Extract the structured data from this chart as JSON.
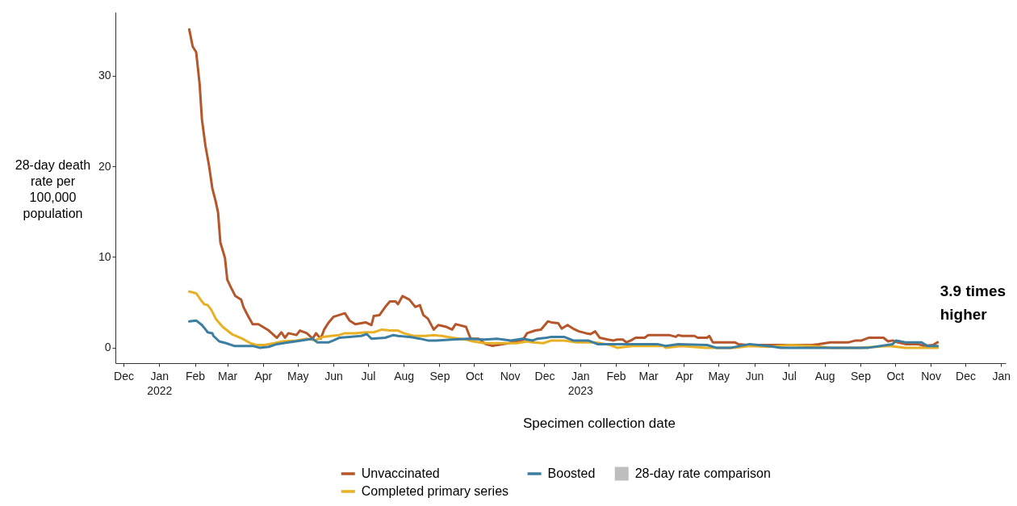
{
  "chart_data": {
    "type": "line",
    "xlabel": "Specimen collection date",
    "ylabel": "28-day death rate per 100,000 population",
    "annotations": [
      "3.9 times higher"
    ],
    "xlim": [
      "2021-11-24",
      "2024-01-05"
    ],
    "xticks": [
      {
        "value": "2021-12-01",
        "label": "Dec"
      },
      {
        "value": "2022-01-01",
        "label": "Jan\n2022"
      },
      {
        "value": "2022-02-01",
        "label": "Feb"
      },
      {
        "value": "2022-03-01",
        "label": "Mar"
      },
      {
        "value": "2022-04-01",
        "label": "Apr"
      },
      {
        "value": "2022-05-01",
        "label": "May"
      },
      {
        "value": "2022-06-01",
        "label": "Jun"
      },
      {
        "value": "2022-07-01",
        "label": "Jul"
      },
      {
        "value": "2022-08-01",
        "label": "Aug"
      },
      {
        "value": "2022-09-01",
        "label": "Sep"
      },
      {
        "value": "2022-10-01",
        "label": "Oct"
      },
      {
        "value": "2022-11-01",
        "label": "Nov"
      },
      {
        "value": "2022-12-01",
        "label": "Dec"
      },
      {
        "value": "2023-01-01",
        "label": "Jan\n2023"
      },
      {
        "value": "2023-02-01",
        "label": "Feb"
      },
      {
        "value": "2023-03-01",
        "label": "Mar"
      },
      {
        "value": "2023-04-01",
        "label": "Apr"
      },
      {
        "value": "2023-05-01",
        "label": "May"
      },
      {
        "value": "2023-06-01",
        "label": "Jun"
      },
      {
        "value": "2023-07-01",
        "label": "Jul"
      },
      {
        "value": "2023-08-01",
        "label": "Aug"
      },
      {
        "value": "2023-09-01",
        "label": "Sep"
      },
      {
        "value": "2023-10-01",
        "label": "Oct"
      },
      {
        "value": "2023-11-01",
        "label": "Nov"
      },
      {
        "value": "2023-12-01",
        "label": "Dec"
      },
      {
        "value": "2024-01-01",
        "label": "Jan"
      }
    ],
    "ylim": [
      -1.7,
      37
    ],
    "yticks": [
      0,
      10,
      20,
      30
    ],
    "grid": false,
    "legend": "bottom",
    "series": [
      {
        "name": "Unvaccinated",
        "color": "#b5562b",
        "x": [
          "2022-01-27",
          "2022-01-30",
          "2022-02-02",
          "2022-02-05",
          "2022-02-07",
          "2022-02-10",
          "2022-02-13",
          "2022-02-16",
          "2022-02-19",
          "2022-02-21",
          "2022-02-23",
          "2022-02-27",
          "2022-03-01",
          "2022-03-04",
          "2022-03-08",
          "2022-03-13",
          "2022-03-15",
          "2022-03-19",
          "2022-03-23",
          "2022-03-28",
          "2022-04-06",
          "2022-04-13",
          "2022-04-17",
          "2022-04-20",
          "2022-04-23",
          "2022-04-30",
          "2022-05-03",
          "2022-05-09",
          "2022-05-14",
          "2022-05-17",
          "2022-05-21",
          "2022-05-24",
          "2022-05-28",
          "2022-06-01",
          "2022-06-06",
          "2022-06-11",
          "2022-06-13",
          "2022-06-15",
          "2022-06-20",
          "2022-06-29",
          "2022-07-04",
          "2022-07-06",
          "2022-07-11",
          "2022-07-16",
          "2022-07-20",
          "2022-07-25",
          "2022-07-27",
          "2022-07-31",
          "2022-08-06",
          "2022-08-11",
          "2022-08-15",
          "2022-08-18",
          "2022-08-22",
          "2022-08-27",
          "2022-08-31",
          "2022-09-07",
          "2022-09-12",
          "2022-09-15",
          "2022-09-24",
          "2022-09-28",
          "2022-10-05",
          "2022-10-11",
          "2022-10-17",
          "2022-10-31",
          "2022-11-12",
          "2022-11-16",
          "2022-11-23",
          "2022-11-28",
          "2022-12-04",
          "2022-12-07",
          "2022-12-13",
          "2022-12-16",
          "2022-12-21",
          "2022-12-26",
          "2022-12-31",
          "2023-01-06",
          "2023-01-10",
          "2023-01-14",
          "2023-01-18",
          "2023-01-25",
          "2023-01-30",
          "2023-02-02",
          "2023-02-07",
          "2023-02-10",
          "2023-02-14",
          "2023-02-18",
          "2023-02-26",
          "2023-03-01",
          "2023-03-19",
          "2023-03-25",
          "2023-03-27",
          "2023-03-30",
          "2023-04-10",
          "2023-04-13",
          "2023-04-21",
          "2023-04-23",
          "2023-04-26",
          "2023-05-15",
          "2023-05-18",
          "2023-05-26",
          "2023-07-21",
          "2023-07-27",
          "2023-08-06",
          "2023-08-22",
          "2023-08-28",
          "2023-09-02",
          "2023-09-08",
          "2023-09-21",
          "2023-09-25",
          "2023-09-29",
          "2023-10-03",
          "2023-10-10",
          "2023-10-21",
          "2023-10-26",
          "2023-11-03",
          "2023-11-07"
        ],
        "values": [
          35.1,
          33.2,
          32.6,
          29.1,
          25.2,
          22.3,
          20.2,
          17.6,
          16.1,
          14.9,
          11.6,
          9.9,
          7.5,
          6.7,
          5.7,
          5.3,
          4.5,
          3.5,
          2.6,
          2.6,
          1.9,
          1.1,
          1.7,
          1.1,
          1.6,
          1.4,
          1.9,
          1.6,
          1.0,
          1.6,
          1.0,
          2.0,
          2.8,
          3.4,
          3.6,
          3.8,
          3.4,
          3.0,
          2.6,
          2.8,
          2.5,
          3.5,
          3.6,
          4.5,
          5.1,
          5.1,
          4.8,
          5.7,
          5.3,
          4.5,
          4.7,
          3.6,
          3.2,
          2.0,
          2.5,
          2.3,
          2.0,
          2.6,
          2.3,
          1.0,
          1.0,
          0.4,
          0.2,
          0.5,
          0.8,
          1.6,
          1.9,
          2.0,
          2.9,
          2.8,
          2.7,
          2.1,
          2.5,
          2.1,
          1.8,
          1.6,
          1.5,
          1.8,
          1.1,
          0.9,
          0.8,
          0.9,
          0.9,
          0.6,
          0.8,
          1.1,
          1.1,
          1.4,
          1.4,
          1.2,
          1.4,
          1.3,
          1.3,
          1.1,
          1.1,
          1.3,
          0.6,
          0.6,
          0.4,
          0.3,
          0.3,
          0.4,
          0.6,
          0.6,
          0.8,
          0.8,
          1.1,
          1.1,
          0.7,
          0.8,
          0.6,
          0.4,
          0.4,
          0.2,
          0.3,
          0.6
        ]
      },
      {
        "name": "Completed primary series",
        "color": "#e8b024",
        "x": [
          "2022-01-27",
          "2022-02-02",
          "2022-02-07",
          "2022-02-09",
          "2022-02-12",
          "2022-02-15",
          "2022-02-19",
          "2022-02-23",
          "2022-02-25",
          "2022-03-05",
          "2022-03-14",
          "2022-03-21",
          "2022-03-26",
          "2022-04-02",
          "2022-04-11",
          "2022-04-18",
          "2022-04-30",
          "2022-05-09",
          "2022-05-16",
          "2022-05-23",
          "2022-05-30",
          "2022-06-06",
          "2022-06-11",
          "2022-06-20",
          "2022-06-29",
          "2022-07-06",
          "2022-07-13",
          "2022-07-20",
          "2022-07-27",
          "2022-08-01",
          "2022-08-10",
          "2022-08-20",
          "2022-08-27",
          "2022-09-03",
          "2022-09-12",
          "2022-09-24",
          "2022-09-30",
          "2022-10-10",
          "2022-10-24",
          "2022-11-07",
          "2022-11-16",
          "2022-11-21",
          "2022-11-30",
          "2022-12-07",
          "2022-12-18",
          "2022-12-29",
          "2023-01-14",
          "2023-01-27",
          "2023-02-02",
          "2023-02-15",
          "2023-03-14",
          "2023-03-16",
          "2023-03-30",
          "2023-04-20",
          "2023-05-15",
          "2023-05-28",
          "2023-06-13",
          "2023-07-02",
          "2023-07-21",
          "2023-08-06",
          "2023-08-31",
          "2023-09-26",
          "2023-10-10",
          "2023-11-07"
        ],
        "values": [
          6.2,
          6.0,
          5.1,
          4.8,
          4.7,
          4.2,
          3.2,
          2.6,
          2.3,
          1.5,
          1.0,
          0.5,
          0.3,
          0.3,
          0.5,
          0.7,
          0.8,
          1.0,
          0.8,
          1.2,
          1.3,
          1.4,
          1.6,
          1.6,
          1.7,
          1.7,
          2.0,
          1.9,
          1.9,
          1.6,
          1.3,
          1.3,
          1.4,
          1.3,
          1.1,
          0.9,
          0.7,
          0.5,
          0.5,
          0.5,
          0.7,
          0.6,
          0.5,
          0.8,
          0.8,
          0.6,
          0.6,
          0.3,
          0.0,
          0.2,
          0.2,
          0.0,
          0.2,
          0.0,
          0.0,
          0.2,
          0.1,
          0.3,
          0.2,
          0.0,
          0.0,
          0.2,
          0.0,
          0.0
        ]
      },
      {
        "name": "Boosted",
        "color": "#3b7ea1",
        "x": [
          "2022-01-27",
          "2022-02-02",
          "2022-02-07",
          "2022-02-09",
          "2022-02-12",
          "2022-02-16",
          "2022-02-17",
          "2022-02-22",
          "2022-02-28",
          "2022-03-07",
          "2022-03-23",
          "2022-03-29",
          "2022-04-06",
          "2022-04-13",
          "2022-04-23",
          "2022-05-04",
          "2022-05-14",
          "2022-05-18",
          "2022-05-28",
          "2022-06-01",
          "2022-06-06",
          "2022-06-15",
          "2022-06-25",
          "2022-06-30",
          "2022-07-04",
          "2022-07-16",
          "2022-07-23",
          "2022-07-27",
          "2022-08-06",
          "2022-08-15",
          "2022-08-22",
          "2022-08-29",
          "2022-09-12",
          "2022-09-26",
          "2022-10-10",
          "2022-10-21",
          "2022-11-02",
          "2022-11-12",
          "2022-11-21",
          "2022-11-25",
          "2022-12-03",
          "2022-12-07",
          "2022-12-18",
          "2022-12-26",
          "2023-01-08",
          "2023-01-16",
          "2023-02-10",
          "2023-03-09",
          "2023-03-16",
          "2023-03-27",
          "2023-04-21",
          "2023-04-29",
          "2023-05-12",
          "2023-05-28",
          "2023-06-13",
          "2023-06-24",
          "2023-09-08",
          "2023-09-29",
          "2023-10-02",
          "2023-10-10",
          "2023-10-24",
          "2023-10-29",
          "2023-11-07"
        ],
        "values": [
          2.9,
          3.0,
          2.5,
          2.2,
          1.7,
          1.6,
          1.3,
          0.7,
          0.5,
          0.2,
          0.2,
          0.0,
          0.1,
          0.4,
          0.6,
          0.8,
          1.0,
          0.6,
          0.6,
          0.8,
          1.1,
          1.2,
          1.3,
          1.5,
          1.0,
          1.1,
          1.4,
          1.3,
          1.2,
          1.0,
          0.8,
          0.8,
          0.9,
          1.0,
          0.9,
          1.0,
          0.8,
          1.0,
          0.8,
          1.0,
          1.1,
          1.2,
          1.2,
          0.8,
          0.8,
          0.4,
          0.4,
          0.4,
          0.2,
          0.4,
          0.3,
          0.0,
          0.0,
          0.4,
          0.2,
          0.0,
          0.0,
          0.4,
          0.8,
          0.6,
          0.6,
          0.2,
          0.2
        ]
      },
      {
        "name": "28-day rate comparison",
        "type": "area",
        "color": "#bebebe"
      }
    ]
  }
}
